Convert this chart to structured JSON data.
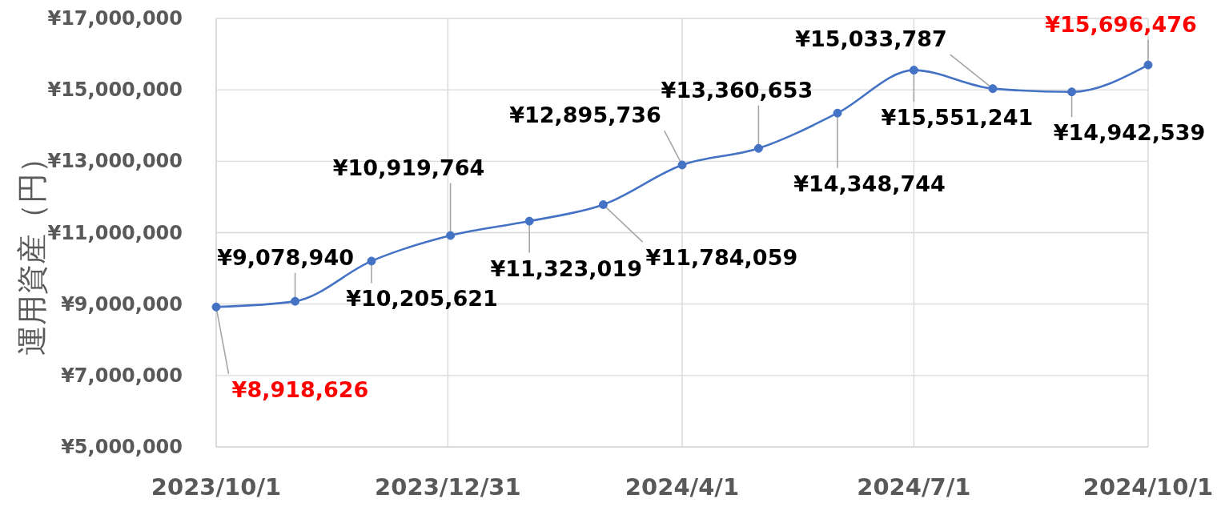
{
  "chart_data": {
    "type": "line",
    "ylabel": "運用資産（円）",
    "x": [
      "2023-10-01",
      "2023-11-01",
      "2023-12-01",
      "2024-01-01",
      "2024-02-01",
      "2024-03-01",
      "2024-04-01",
      "2024-05-01",
      "2024-06-01",
      "2024-07-01",
      "2024-08-01",
      "2024-09-01",
      "2024-10-01"
    ],
    "series": [
      {
        "color": "#4472c4",
        "values": [
          8918626,
          9078940,
          10205621,
          10919764,
          11323019,
          11784059,
          12895736,
          13360653,
          14348744,
          15551241,
          15033787,
          14942539,
          15696476
        ],
        "value_labels": [
          null,
          "¥9,078,940",
          "¥10,205,621",
          "¥10,919,764",
          "¥11,323,019",
          "¥11,784,059",
          "¥12,895,736",
          "¥13,360,653",
          "¥14,348,744",
          "¥15,551,241",
          "¥15,033,787",
          "¥14,942,539",
          null
        ]
      }
    ],
    "annotations": [
      {
        "text": "¥8,918,626",
        "x": "2023-10-01",
        "y": 8918626
      },
      {
        "text": "¥15,696,476",
        "x": "2024-10-01",
        "y": 15696476
      }
    ],
    "xlim": [
      "2023-10-01",
      "2024-10-01"
    ],
    "xticks": [
      {
        "value": "2023-10-01",
        "label": "2023/10/1"
      },
      {
        "value": "2023-12-31",
        "label": "2023/12/31"
      },
      {
        "value": "2024-04-01",
        "label": "2024/4/1"
      },
      {
        "value": "2024-07-01",
        "label": "2024/7/1"
      },
      {
        "value": "2024-10-01",
        "label": "2024/10/1"
      }
    ],
    "ylim": [
      5000000,
      17000000
    ],
    "yticks": [
      {
        "value": 5000000,
        "label": "¥5,000,000"
      },
      {
        "value": 7000000,
        "label": "¥7,000,000"
      },
      {
        "value": 9000000,
        "label": "¥9,000,000"
      },
      {
        "value": 11000000,
        "label": "¥11,000,000"
      },
      {
        "value": 13000000,
        "label": "¥13,000,000"
      },
      {
        "value": 15000000,
        "label": "¥15,000,000"
      },
      {
        "value": 17000000,
        "label": "¥17,000,000"
      }
    ],
    "grid": true,
    "marker": "circle",
    "line_style": "solid"
  }
}
